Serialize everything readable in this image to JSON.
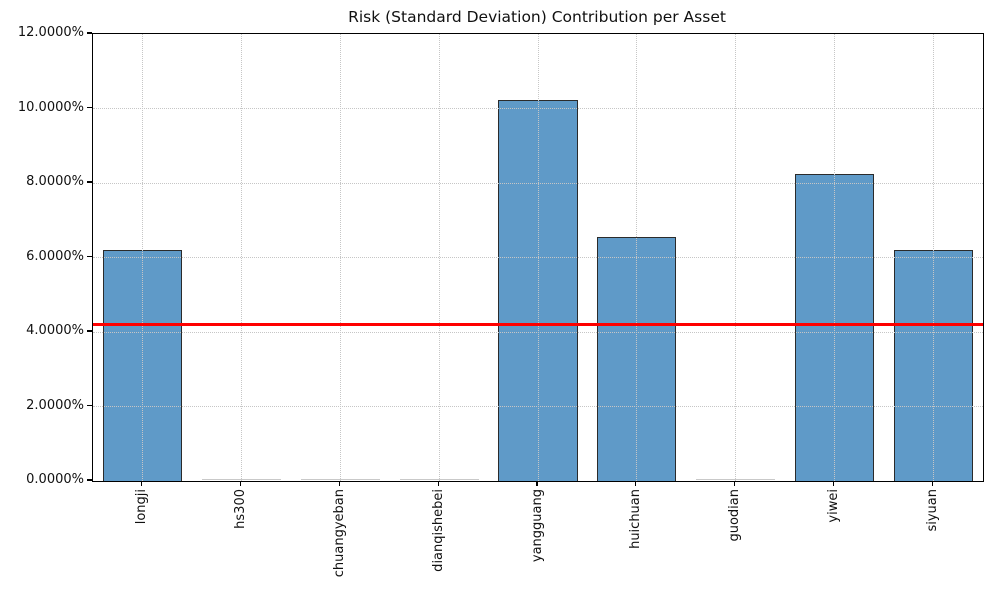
{
  "chart_data": {
    "type": "bar",
    "title": "Risk (Standard Deviation) Contribution per Asset",
    "categories": [
      "longji",
      "hs300",
      "chuangyeban",
      "dianqishebei",
      "yangguang",
      "huichuan",
      "guodian",
      "yiwei",
      "siyuan"
    ],
    "values": [
      6.21,
      0.0,
      0.0,
      0.0,
      10.24,
      6.54,
      0.0,
      8.24,
      6.19
    ],
    "unit": "%",
    "ylim": [
      0,
      12
    ],
    "ytick_values": [
      0,
      2,
      4,
      6,
      8,
      10,
      12
    ],
    "ytick_labels": [
      "0.0000%",
      "2.0000%",
      "4.0000%",
      "6.0000%",
      "8.0000%",
      "10.0000%",
      "12.0000%"
    ],
    "xlabel": "",
    "ylabel": "",
    "grid": "dotted",
    "legend": "none",
    "threshold_line": {
      "value": 4.19,
      "color": "#ff0000"
    },
    "bar_fill_color": "#5f9ac8",
    "bar_edge_color": "#2b2b2b",
    "zero_bar_line_color": "#c9c9c9"
  }
}
